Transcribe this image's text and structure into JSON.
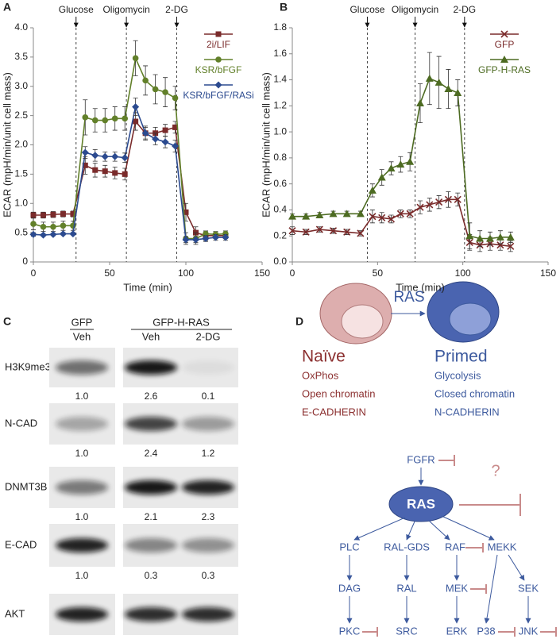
{
  "chart_data": [
    {
      "type": "line",
      "panel_label": "A",
      "x_label": "Time (min)",
      "y_label": "ECAR (mpH/min/unit cell mass)",
      "x": [
        0,
        6.5,
        13,
        19.5,
        26,
        34,
        40.5,
        47,
        53.5,
        60,
        67,
        73.5,
        80,
        86.5,
        93,
        100,
        106.5,
        113,
        119.5,
        126
      ],
      "series": [
        {
          "name": "2i/LIF",
          "color": "#7a2b2b",
          "marker": "square",
          "values": [
            0.8,
            0.8,
            0.81,
            0.82,
            0.82,
            1.65,
            1.57,
            1.55,
            1.52,
            1.5,
            2.4,
            2.2,
            2.2,
            2.25,
            2.3,
            0.85,
            0.5,
            0.45,
            0.45,
            0.45
          ],
          "errors": [
            0.05,
            0.05,
            0.05,
            0.05,
            0.05,
            0.15,
            0.12,
            0.1,
            0.1,
            0.1,
            0.15,
            0.12,
            0.1,
            0.1,
            0.1,
            0.15,
            0.1,
            0.08,
            0.05,
            0.05
          ]
        },
        {
          "name": "KSR/bFGF",
          "color": "#62802a",
          "marker": "circle",
          "values": [
            0.65,
            0.6,
            0.6,
            0.62,
            0.62,
            2.47,
            2.42,
            2.42,
            2.45,
            2.45,
            3.48,
            3.1,
            2.95,
            2.9,
            2.8,
            0.4,
            0.4,
            0.48,
            0.47,
            0.48
          ],
          "errors": [
            0.1,
            0.08,
            0.08,
            0.08,
            0.08,
            0.3,
            0.2,
            0.2,
            0.2,
            0.2,
            0.3,
            0.25,
            0.25,
            0.25,
            0.2,
            0.1,
            0.1,
            0.05,
            0.05,
            0.05
          ]
        },
        {
          "name": "KSR/bFGF/RASi",
          "color": "#2b4a8f",
          "marker": "diamond",
          "values": [
            0.47,
            0.46,
            0.47,
            0.48,
            0.48,
            1.87,
            1.82,
            1.8,
            1.8,
            1.78,
            2.65,
            2.2,
            2.1,
            2.05,
            1.98,
            0.38,
            0.38,
            0.4,
            0.42,
            0.42
          ],
          "errors": [
            0.03,
            0.02,
            0.02,
            0.02,
            0.02,
            0.1,
            0.1,
            0.08,
            0.08,
            0.08,
            0.15,
            0.1,
            0.1,
            0.1,
            0.1,
            0.05,
            0.05,
            0.05,
            0.05,
            0.05
          ]
        }
      ],
      "annotations": [
        {
          "label": "Glucose",
          "x": 28
        },
        {
          "label": "Oligomycin",
          "x": 61
        },
        {
          "label": "2-DG",
          "x": 94
        }
      ],
      "xlim": [
        0,
        150
      ],
      "xticks": [
        0,
        50,
        100,
        150
      ],
      "ylim": [
        0,
        4
      ],
      "yticks": [
        0,
        0.5,
        {
          "value": 1,
          "label": "1.0"
        },
        1.5,
        {
          "value": 2,
          "label": "2.0"
        },
        2.5,
        {
          "value": 3,
          "label": "3.0"
        },
        3.5,
        {
          "value": 4,
          "label": "4.0"
        }
      ],
      "grid": false,
      "legend": "upper right"
    },
    {
      "type": "line",
      "panel_label": "B",
      "x_label": "Time (min)",
      "y_label": "ECAR (mpH/min/unit cell mass)",
      "x": [
        0,
        8,
        16,
        24,
        32,
        40,
        47,
        52.5,
        58,
        63.5,
        69,
        75,
        80.5,
        86,
        91.5,
        97,
        104,
        110,
        116,
        122,
        128
      ],
      "series": [
        {
          "name": "GFP",
          "color": "#7a2b2b",
          "marker": "x",
          "values": [
            0.24,
            0.23,
            0.25,
            0.24,
            0.23,
            0.22,
            0.35,
            0.34,
            0.33,
            0.37,
            0.37,
            0.42,
            0.44,
            0.46,
            0.48,
            0.48,
            0.15,
            0.13,
            0.14,
            0.13,
            0.12
          ],
          "errors": [
            0.03,
            0.02,
            0.02,
            0.02,
            0.02,
            0.02,
            0.05,
            0.04,
            0.03,
            0.03,
            0.03,
            0.05,
            0.05,
            0.05,
            0.06,
            0.05,
            0.06,
            0.05,
            0.05,
            0.04,
            0.04
          ]
        },
        {
          "name": "GFP-H-RAS",
          "color": "#4d6b22",
          "marker": "triangle",
          "values": [
            0.35,
            0.35,
            0.36,
            0.37,
            0.37,
            0.37,
            0.55,
            0.65,
            0.72,
            0.75,
            0.77,
            1.22,
            1.41,
            1.38,
            1.33,
            1.3,
            0.2,
            0.18,
            0.18,
            0.19,
            0.19
          ],
          "errors": [
            0.02,
            0.02,
            0.02,
            0.02,
            0.02,
            0.02,
            0.05,
            0.06,
            0.05,
            0.06,
            0.07,
            0.15,
            0.2,
            0.2,
            0.15,
            0.1,
            0.1,
            0.06,
            0.05,
            0.05,
            0.04
          ]
        }
      ],
      "annotations": [
        {
          "label": "Glucose",
          "x": 44
        },
        {
          "label": "Oligomycin",
          "x": 72
        },
        {
          "label": "2-DG",
          "x": 101
        }
      ],
      "xlim": [
        0,
        150
      ],
      "xticks": [
        0,
        50,
        100,
        150
      ],
      "ylim": [
        0,
        1.8
      ],
      "yticks": [
        {
          "value": 0,
          "label": "0.0"
        },
        0.2,
        0.4,
        0.6,
        0.8,
        {
          "value": 1,
          "label": "1.0"
        },
        1.2,
        1.4,
        1.6,
        1.8
      ],
      "grid": false,
      "legend": "upper right"
    }
  ],
  "blot": {
    "panel_label": "C",
    "groups": [
      {
        "label": "GFP",
        "lanes": [
          "Veh"
        ]
      },
      {
        "label": "GFP-H-RAS",
        "lanes": [
          "Veh",
          "2-DG"
        ]
      }
    ],
    "rows": [
      {
        "label": "H3K9me3",
        "values": [
          "1.0",
          "2.6",
          "0.1"
        ]
      },
      {
        "label": "N-CAD",
        "values": [
          "1.0",
          "2.4",
          "1.2"
        ]
      },
      {
        "label": "DNMT3B",
        "values": [
          "1.0",
          "2.1",
          "2.3"
        ]
      },
      {
        "label": "E-CAD",
        "values": [
          "1.0",
          "0.3",
          "0.3"
        ]
      },
      {
        "label": "AKT"
      }
    ]
  },
  "diagram": {
    "panel_label": "D",
    "transition_label": "RAS",
    "states": [
      {
        "label": "Naïve",
        "features": [
          "OxPhos",
          "Open chromatin",
          "E-CADHERIN"
        ]
      },
      {
        "label": "Primed",
        "features": [
          "Glycolysis",
          "Closed chromatin",
          "N-CADHERIN"
        ]
      }
    ],
    "receptor": "FGFR",
    "hub": "RAS",
    "unknown_regulator": "?",
    "pathway": [
      "PLC",
      "RAL-GDS",
      "RAF",
      "MEKK",
      "DAG",
      "RAL",
      "MEK",
      "SEK",
      "PKC",
      "SRC",
      "ERK",
      "P38",
      "JNK"
    ]
  }
}
